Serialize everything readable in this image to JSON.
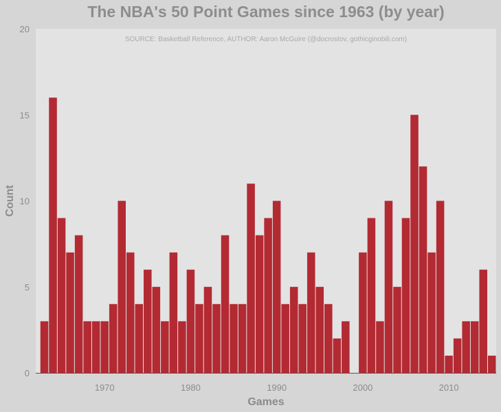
{
  "chart_data": {
    "type": "bar",
    "title": "The NBA's 50 Point Games since 1963 (by year)",
    "annotation": "SOURCE: Basketball Reference, AUTHOR: Aaron McGuire (@docrostov, gothicginobili.com)",
    "xlabel": "Games",
    "ylabel": "Count",
    "x_ticks": [
      1970,
      1980,
      1990,
      2000,
      2010
    ],
    "y_ticks": [
      0,
      5,
      10,
      15,
      20
    ],
    "xlim": [
      1962,
      2015.5
    ],
    "ylim": [
      0,
      20
    ],
    "grid": false,
    "years": [
      1963,
      1964,
      1965,
      1966,
      1967,
      1968,
      1969,
      1970,
      1971,
      1972,
      1973,
      1974,
      1975,
      1976,
      1977,
      1978,
      1979,
      1980,
      1981,
      1982,
      1983,
      1984,
      1985,
      1986,
      1987,
      1988,
      1989,
      1990,
      1991,
      1992,
      1993,
      1994,
      1995,
      1996,
      1997,
      1998,
      1999,
      2000,
      2001,
      2002,
      2003,
      2004,
      2005,
      2006,
      2007,
      2008,
      2009,
      2010,
      2011,
      2012,
      2013,
      2014,
      2015
    ],
    "values": [
      3,
      16,
      9,
      7,
      8,
      3,
      3,
      3,
      4,
      10,
      7,
      4,
      6,
      5,
      3,
      7,
      3,
      6,
      4,
      5,
      4,
      8,
      4,
      4,
      11,
      8,
      9,
      10,
      4,
      5,
      4,
      7,
      5,
      4,
      2,
      3,
      0,
      7,
      9,
      3,
      10,
      5,
      9,
      15,
      12,
      7,
      10,
      1,
      2,
      3,
      3,
      6,
      1
    ],
    "bar_color": "#b32a33",
    "panel_color": "#e3e3e3",
    "background_color": "#d6d6d6"
  }
}
